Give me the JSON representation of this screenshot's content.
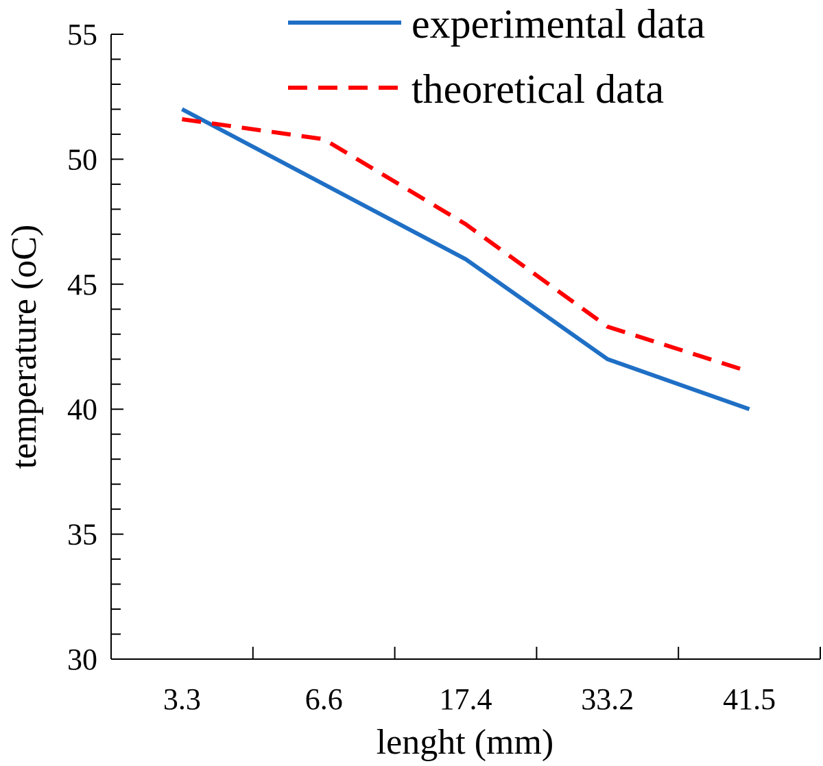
{
  "chart_data": {
    "type": "line",
    "title": "",
    "xlabel": "lenght (mm)",
    "ylabel": "temperature (oC)",
    "categories": [
      "3.3",
      "6.6",
      "17.4",
      "33.2",
      "41.5"
    ],
    "ylim": [
      30,
      55
    ],
    "yticks": [
      "30",
      "35",
      "40",
      "45",
      "50",
      "55"
    ],
    "legend_position": "top-right",
    "series": [
      {
        "name": "experimental data",
        "values": [
          52,
          49,
          46,
          42,
          40
        ],
        "color": "#1f6fc5",
        "style": "solid"
      },
      {
        "name": "theoretical data",
        "values": [
          51.6,
          50.8,
          47.4,
          43.3,
          41.5
        ],
        "color": "#ff0000",
        "style": "dashed"
      }
    ]
  }
}
